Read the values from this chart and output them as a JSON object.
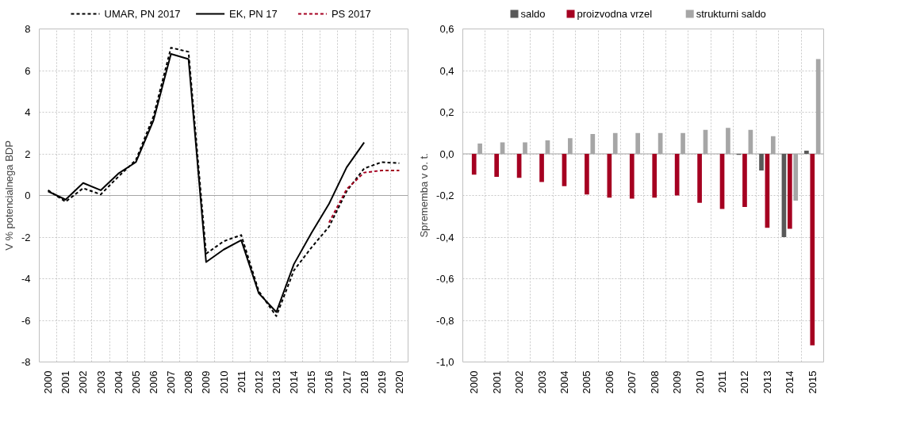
{
  "chart_data": [
    {
      "type": "line",
      "ylabel": "V % potencialnega BDP",
      "categories": [
        "2000",
        "2001",
        "2002",
        "2003",
        "2004",
        "2005",
        "2006",
        "2007",
        "2008",
        "2009",
        "2010",
        "2011",
        "2012",
        "2013",
        "2014",
        "2015",
        "2016",
        "2017",
        "2018",
        "2019",
        "2020"
      ],
      "series": [
        {
          "name": "UMAR, PN 2017",
          "color": "#000000",
          "line_style": "dashed",
          "values": [
            0.25,
            -0.3,
            0.35,
            0.05,
            0.9,
            1.7,
            3.8,
            7.1,
            6.9,
            -2.8,
            -2.2,
            -1.9,
            -4.6,
            -5.8,
            -3.6,
            -2.5,
            -1.5,
            0.2,
            1.3,
            1.6,
            1.55
          ]
        },
        {
          "name": "EK, PN 17",
          "color": "#000000",
          "line_style": "solid",
          "values": [
            0.2,
            -0.2,
            0.6,
            0.25,
            1.05,
            1.6,
            3.6,
            6.8,
            6.55,
            -3.2,
            -2.6,
            -2.15,
            -4.7,
            -5.6,
            -3.3,
            -1.8,
            -0.4,
            1.35,
            2.55,
            null,
            null
          ]
        },
        {
          "name": "PS 2017",
          "color": "#a50021",
          "line_style": "dashed",
          "values": [
            null,
            null,
            null,
            null,
            null,
            null,
            null,
            null,
            null,
            null,
            null,
            null,
            null,
            null,
            null,
            null,
            -1.3,
            0.3,
            1.1,
            1.2,
            1.2
          ]
        }
      ],
      "ylim": [
        -8,
        8
      ],
      "yticks": [
        -8,
        -6,
        -4,
        -2,
        0,
        2,
        4,
        6,
        8
      ],
      "grid": true,
      "legend": "top"
    },
    {
      "type": "bar",
      "ylabel": "Sprememba v o. t.",
      "categories": [
        "2000",
        "2001",
        "2002",
        "2003",
        "2004",
        "2005",
        "2006",
        "2007",
        "2008",
        "2009",
        "2010",
        "2011",
        "2012",
        "2013",
        "2014",
        "2015"
      ],
      "series": [
        {
          "name": "saldo",
          "color": "#595959",
          "values": [
            null,
            null,
            null,
            null,
            null,
            null,
            null,
            null,
            null,
            null,
            null,
            null,
            -0.005,
            -0.08,
            -0.4,
            0.015
          ]
        },
        {
          "name": "proizvodna vrzel",
          "color": "#a50021",
          "values": [
            -0.1,
            -0.11,
            -0.115,
            -0.135,
            -0.155,
            -0.195,
            -0.21,
            -0.215,
            -0.21,
            -0.2,
            -0.235,
            -0.265,
            -0.255,
            -0.355,
            -0.36,
            -0.92
          ]
        },
        {
          "name": "strukturni saldo",
          "color": "#a6a6a6",
          "values": [
            0.05,
            0.055,
            0.055,
            0.065,
            0.075,
            0.095,
            0.1,
            0.1,
            0.1,
            0.1,
            0.115,
            0.125,
            0.115,
            0.085,
            -0.225,
            0.455
          ]
        }
      ],
      "ylim": [
        -1.0,
        0.6
      ],
      "yticks": [
        {
          "value": -1.0,
          "label": "-1,0"
        },
        {
          "value": -0.8,
          "label": "-0,8"
        },
        {
          "value": -0.6,
          "label": "-0,6"
        },
        {
          "value": -0.4,
          "label": "-0,4"
        },
        {
          "value": -0.2,
          "label": "-0,2"
        },
        {
          "value": 0.0,
          "label": "0,0"
        },
        {
          "value": 0.2,
          "label": "0,2"
        },
        {
          "value": 0.4,
          "label": "0,4"
        },
        {
          "value": 0.6,
          "label": "0,6"
        }
      ],
      "grid": true,
      "legend": "top"
    }
  ]
}
